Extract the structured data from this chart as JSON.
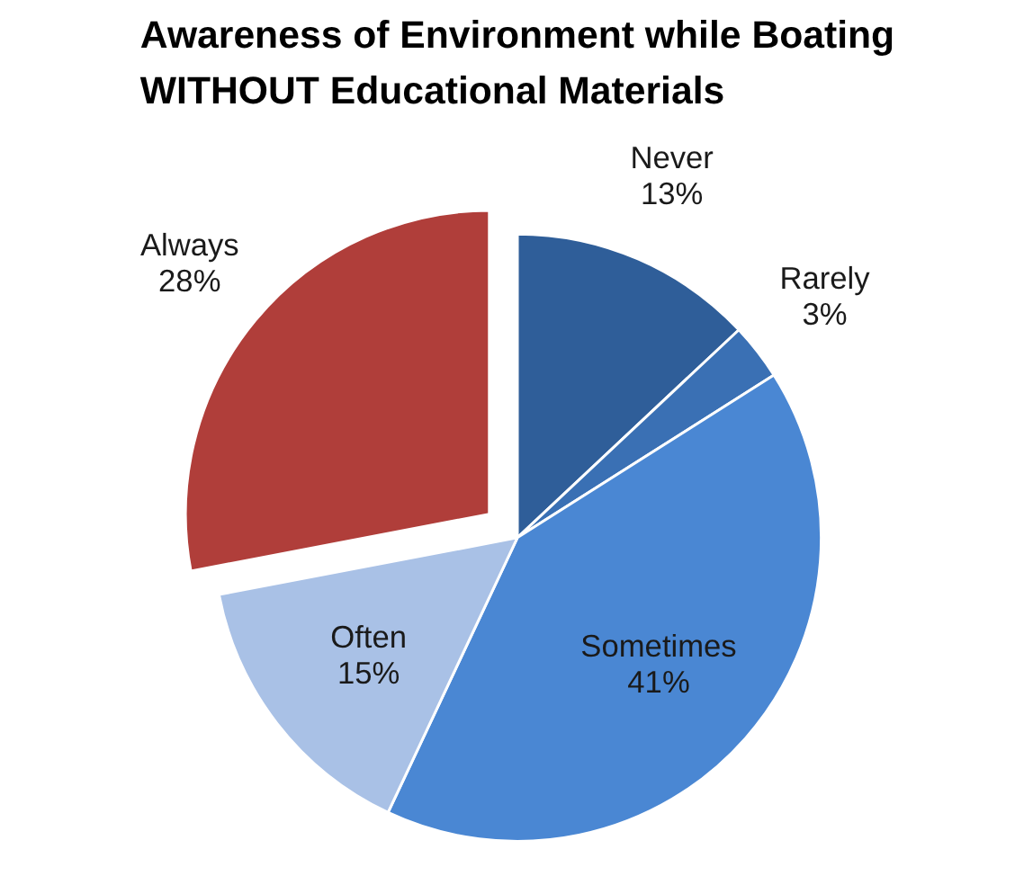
{
  "chart_data": {
    "type": "pie",
    "title": "Awareness of Environment while Boating WITHOUT Educational Materials",
    "categories": [
      "Never",
      "Rarely",
      "Sometimes",
      "Often",
      "Always"
    ],
    "values": [
      13,
      3,
      41,
      15,
      28
    ],
    "colors": [
      "#2f5e99",
      "#3a70b4",
      "#4a87d3",
      "#a9c1e6",
      "#b03e3a"
    ],
    "value_labels": [
      "13%",
      "3%",
      "41%",
      "15%",
      "28%"
    ]
  }
}
